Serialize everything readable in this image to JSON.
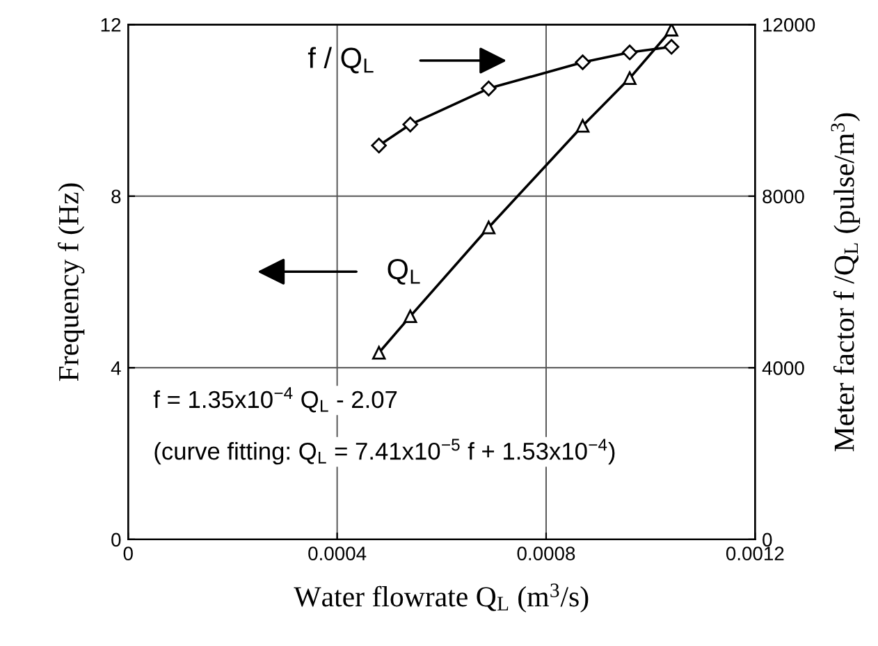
{
  "chart_data": {
    "type": "line",
    "xlabel": "Water flowrate Q$_{L}$ (m$^{3}$/s)",
    "ylabel": "Frequency f (Hz)",
    "y2label": "Meter factor f /Q$_{L}$ (pulse/m$^{3}$)",
    "x": [
      0.00048,
      0.00054,
      0.00069,
      0.00087,
      0.00096,
      0.00104
    ],
    "series": [
      {
        "name": "Q$_{L}$",
        "color": "#000000",
        "marker": "triangle",
        "values": [
          4.35,
          5.2,
          7.27,
          9.64,
          10.75,
          11.88
        ]
      },
      {
        "name": "f / Q$_{L}$",
        "color": "#000000",
        "marker": "diamond",
        "axis": "y2",
        "values": [
          9180,
          9670,
          10510,
          11120,
          11350,
          11480
        ]
      }
    ],
    "xlim": [
      0,
      0.0012
    ],
    "xticks": [
      0,
      0.0004,
      0.0008,
      0.0012
    ],
    "ylim": [
      0,
      12
    ],
    "yticks": [
      0,
      4,
      8,
      12
    ],
    "y2lim": [
      0,
      12000
    ],
    "y2ticks": [
      0,
      4000,
      8000,
      12000
    ],
    "grid": true,
    "line_style": "solid",
    "annotations": [
      "f = 1.35x10$^{−4}$ Q$_{L}$ - 2.07",
      "(curve fitting: Q$_{L}$ = 7.41x10$^{−5}$ f + 1.53x10$^{−4}$)"
    ]
  }
}
